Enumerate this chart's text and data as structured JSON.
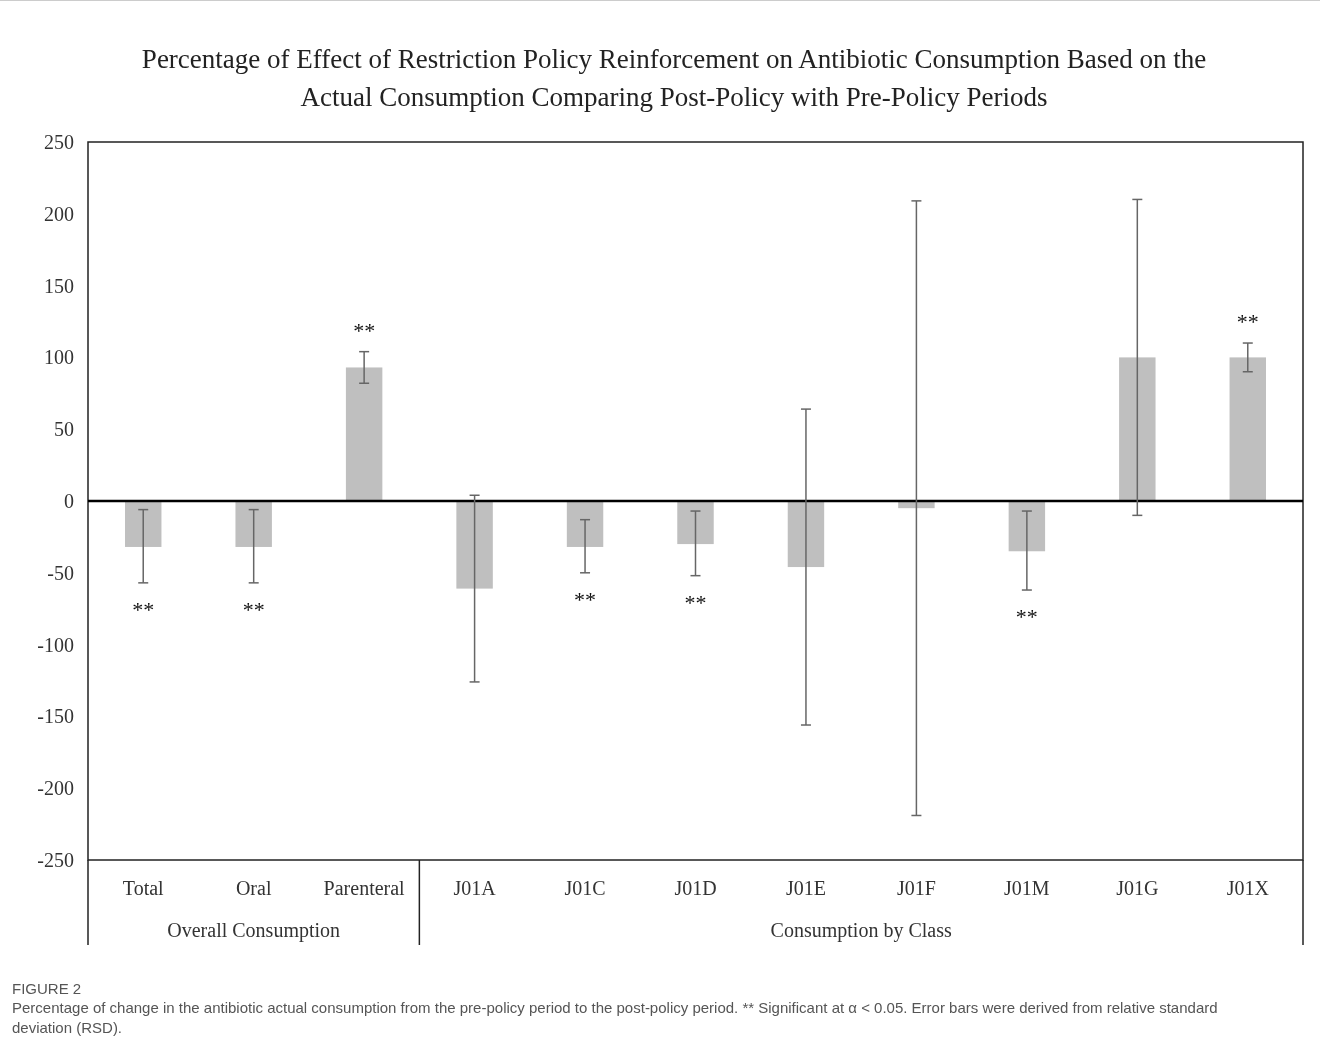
{
  "chart_data": {
    "type": "bar",
    "title": "Percentage of Effect of Restriction Policy Reinforcement on Antibiotic Consumption Based on the Actual Consumption Comparing Post-Policy with Pre-Policy Periods",
    "categories": [
      "Total",
      "Oral",
      "Parenteral",
      "J01A",
      "J01C",
      "J01D",
      "J01E",
      "J01F",
      "J01M",
      "J01G",
      "J01X"
    ],
    "values": [
      -32,
      -32,
      93,
      -61,
      -32,
      -30,
      -46,
      -5,
      -35,
      100,
      100
    ],
    "errors": [
      [
        -57,
        -6
      ],
      [
        -57,
        -6
      ],
      [
        82,
        104
      ],
      [
        -126,
        4
      ],
      [
        -50,
        -13
      ],
      [
        -52,
        -7
      ],
      [
        -156,
        64
      ],
      [
        -219,
        209
      ],
      [
        -62,
        -7
      ],
      [
        -10,
        210
      ],
      [
        90,
        110
      ]
    ],
    "color": "#bfbfbf",
    "ylim": [
      -250,
      250
    ],
    "yticks": [
      -250,
      -200,
      -150,
      -100,
      -50,
      0,
      50,
      100,
      150,
      200,
      250
    ],
    "value_labels": [
      "**",
      "**",
      "**",
      null,
      "**",
      "**",
      null,
      null,
      "**",
      null,
      "**"
    ],
    "grid": false,
    "annotations": [
      "Overall Consumption",
      "Consumption by Class",
      "FIGURE 2",
      "Percentage of change in the antibiotic actual consumption from the pre-policy period to the post-policy period. ** Significant at α < 0.05. Error bars were derived from relative standard deviation (RSD)."
    ]
  }
}
